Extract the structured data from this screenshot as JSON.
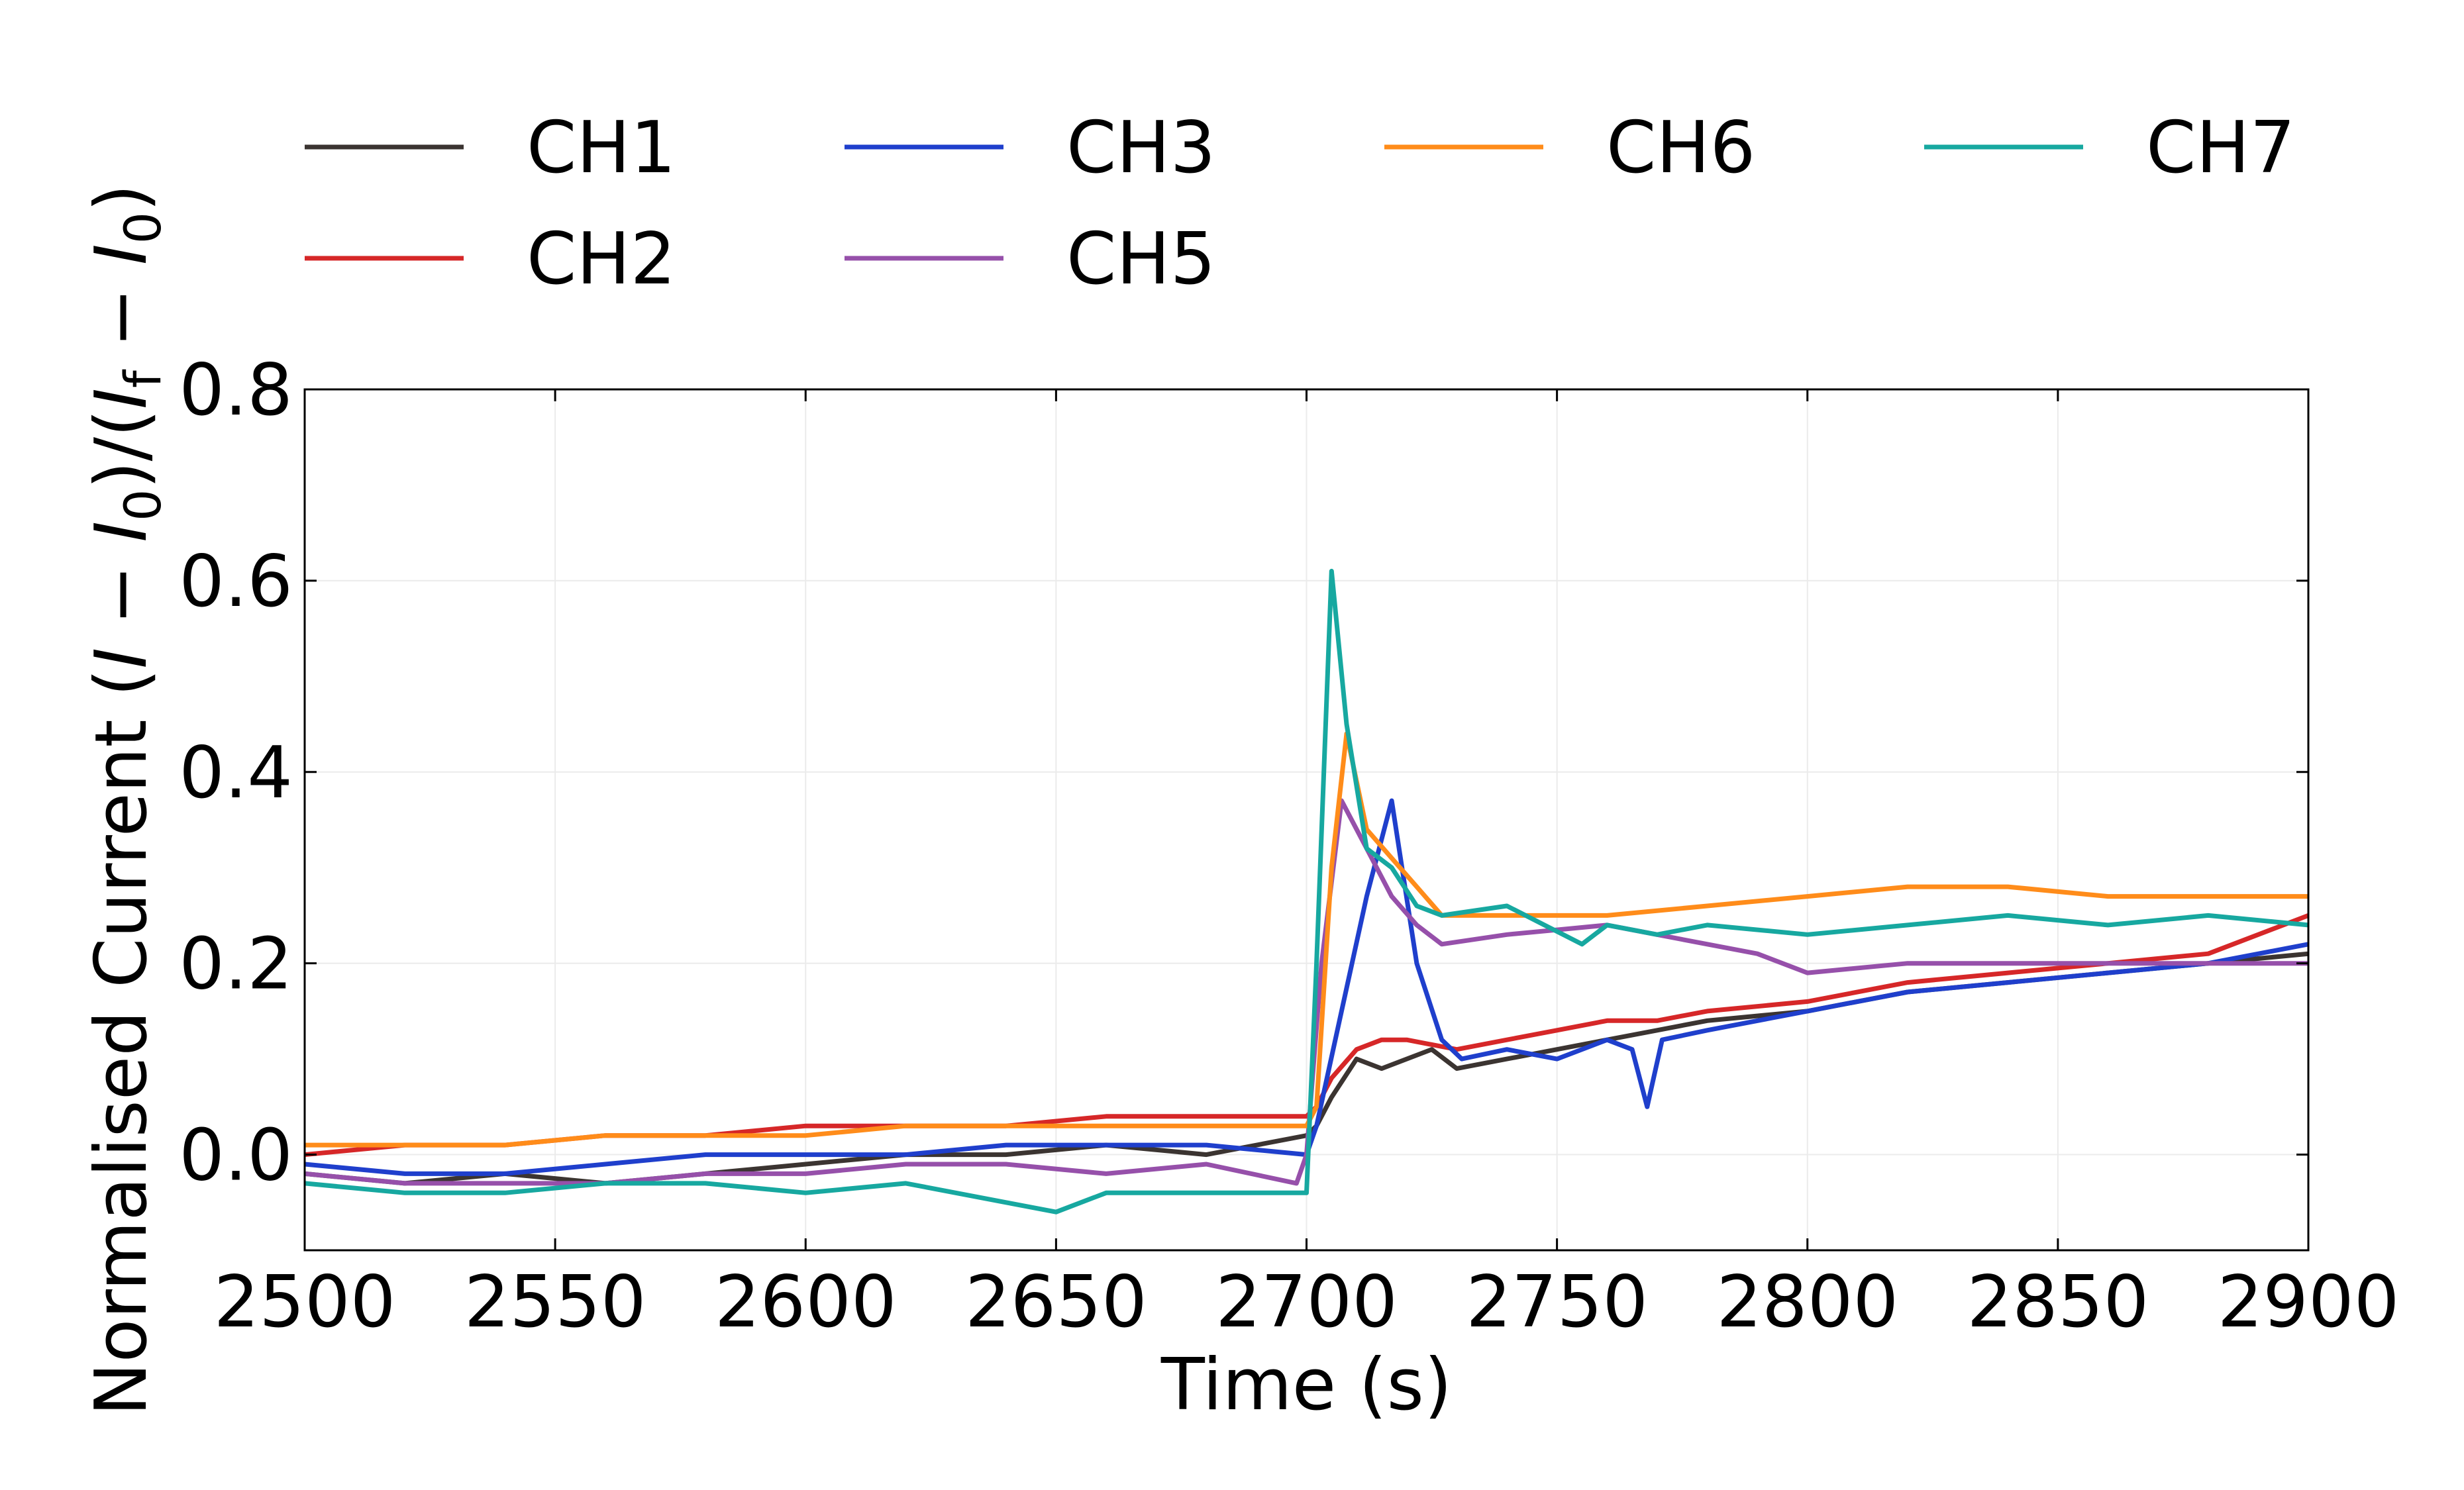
{
  "chart_data": {
    "type": "line",
    "xlabel": "Time (s)",
    "ylabel_parts": [
      "Normalised Current (",
      "I",
      " − ",
      "I",
      "0",
      ")/(",
      "I",
      "f",
      " − ",
      "I",
      "0",
      ")"
    ],
    "xlim": [
      2500,
      2900
    ],
    "ylim": [
      -0.1,
      0.8
    ],
    "xticks": [
      "2500",
      "2550",
      "2600",
      "2650",
      "2700",
      "2750",
      "2800",
      "2850",
      "2900"
    ],
    "yticks": [
      "0.0",
      "0.2",
      "0.4",
      "0.6",
      "0.8"
    ],
    "grid": true,
    "legend_position": "top, outside plot, 4 columns",
    "series": [
      {
        "name": "CH1",
        "color": "#3b3431",
        "x": [
          2500,
          2520,
          2540,
          2560,
          2580,
          2600,
          2620,
          2640,
          2660,
          2680,
          2700,
          2702,
          2705,
          2710,
          2715,
          2720,
          2725,
          2730,
          2740,
          2750,
          2760,
          2770,
          2780,
          2800,
          2820,
          2840,
          2860,
          2880,
          2900
        ],
        "y": [
          -0.02,
          -0.03,
          -0.02,
          -0.03,
          -0.02,
          -0.01,
          0.0,
          0.0,
          0.01,
          0.0,
          0.02,
          0.03,
          0.06,
          0.1,
          0.09,
          0.1,
          0.11,
          0.09,
          0.1,
          0.11,
          0.12,
          0.13,
          0.14,
          0.15,
          0.17,
          0.18,
          0.19,
          0.2,
          0.21
        ]
      },
      {
        "name": "CH2",
        "color": "#d62728",
        "x": [
          2500,
          2520,
          2540,
          2560,
          2580,
          2600,
          2620,
          2640,
          2660,
          2680,
          2700,
          2702,
          2705,
          2710,
          2715,
          2720,
          2730,
          2740,
          2750,
          2760,
          2770,
          2780,
          2800,
          2820,
          2840,
          2860,
          2880,
          2900
        ],
        "y": [
          0.0,
          0.01,
          0.01,
          0.02,
          0.02,
          0.03,
          0.03,
          0.03,
          0.04,
          0.04,
          0.04,
          0.05,
          0.08,
          0.11,
          0.12,
          0.12,
          0.11,
          0.12,
          0.13,
          0.14,
          0.14,
          0.15,
          0.16,
          0.18,
          0.19,
          0.2,
          0.21,
          0.25
        ]
      },
      {
        "name": "CH3",
        "color": "#1f3fcc",
        "x": [
          2500,
          2520,
          2540,
          2560,
          2580,
          2600,
          2620,
          2640,
          2660,
          2680,
          2700,
          2702,
          2707,
          2712,
          2717,
          2722,
          2727,
          2731,
          2740,
          2750,
          2760,
          2765,
          2768,
          2771,
          2780,
          2800,
          2820,
          2840,
          2860,
          2880,
          2900
        ],
        "y": [
          -0.01,
          -0.02,
          -0.02,
          -0.01,
          0.0,
          0.0,
          0.0,
          0.01,
          0.01,
          0.01,
          0.0,
          0.03,
          0.15,
          0.27,
          0.37,
          0.2,
          0.12,
          0.1,
          0.11,
          0.1,
          0.12,
          0.11,
          0.05,
          0.12,
          0.13,
          0.15,
          0.17,
          0.18,
          0.19,
          0.2,
          0.22
        ]
      },
      {
        "name": "CH5",
        "color": "#9650aa",
        "x": [
          2500,
          2520,
          2540,
          2560,
          2580,
          2600,
          2620,
          2640,
          2660,
          2680,
          2698,
          2700,
          2703,
          2707,
          2712,
          2717,
          2722,
          2727,
          2740,
          2760,
          2780,
          2790,
          2800,
          2820,
          2840,
          2860,
          2880,
          2900
        ],
        "y": [
          -0.02,
          -0.03,
          -0.03,
          -0.03,
          -0.02,
          -0.02,
          -0.01,
          -0.01,
          -0.02,
          -0.01,
          -0.03,
          0.0,
          0.2,
          0.37,
          0.32,
          0.27,
          0.24,
          0.22,
          0.23,
          0.24,
          0.22,
          0.21,
          0.19,
          0.2,
          0.2,
          0.2,
          0.2,
          0.2
        ]
      },
      {
        "name": "CH6",
        "color": "#ff8c1a",
        "x": [
          2500,
          2520,
          2540,
          2560,
          2580,
          2600,
          2620,
          2640,
          2660,
          2680,
          2700,
          2702,
          2705,
          2708,
          2712,
          2717,
          2722,
          2727,
          2740,
          2760,
          2780,
          2800,
          2820,
          2840,
          2860,
          2880,
          2900
        ],
        "y": [
          0.01,
          0.01,
          0.01,
          0.02,
          0.02,
          0.02,
          0.03,
          0.03,
          0.03,
          0.03,
          0.03,
          0.05,
          0.3,
          0.44,
          0.34,
          0.31,
          0.28,
          0.25,
          0.25,
          0.25,
          0.26,
          0.27,
          0.28,
          0.28,
          0.27,
          0.27,
          0.27
        ]
      },
      {
        "name": "CH7",
        "color": "#17a8a0",
        "x": [
          2500,
          2520,
          2540,
          2560,
          2580,
          2600,
          2620,
          2640,
          2650,
          2660,
          2680,
          2700,
          2702,
          2705,
          2708,
          2712,
          2717,
          2722,
          2727,
          2740,
          2755,
          2760,
          2770,
          2780,
          2800,
          2820,
          2840,
          2860,
          2880,
          2900
        ],
        "y": [
          -0.03,
          -0.04,
          -0.04,
          -0.03,
          -0.03,
          -0.04,
          -0.03,
          -0.05,
          -0.06,
          -0.04,
          -0.04,
          -0.04,
          0.2,
          0.61,
          0.45,
          0.32,
          0.3,
          0.26,
          0.25,
          0.26,
          0.22,
          0.24,
          0.23,
          0.24,
          0.23,
          0.24,
          0.25,
          0.24,
          0.25,
          0.24
        ]
      }
    ]
  }
}
